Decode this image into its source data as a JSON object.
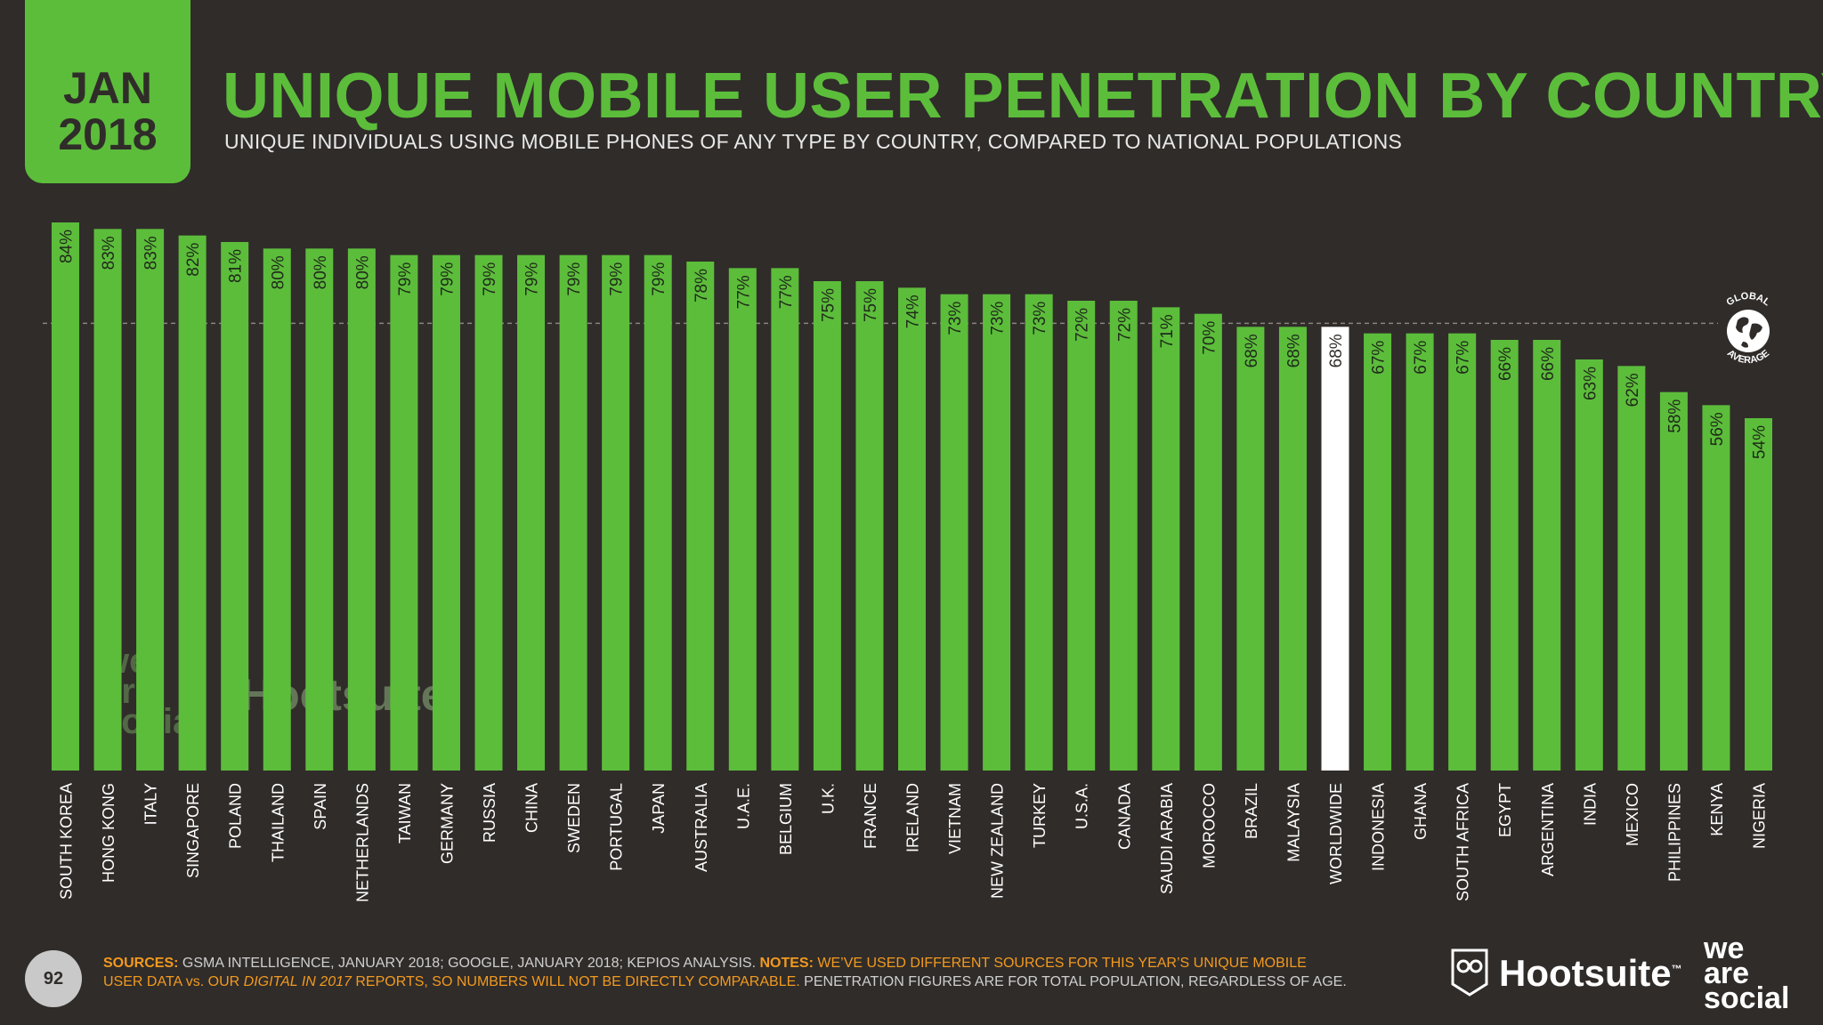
{
  "badge": {
    "month": "JAN",
    "year": "2018"
  },
  "header": {
    "title": "UNIQUE MOBILE USER PENETRATION BY COUNTRY",
    "subtitle": "UNIQUE INDIVIDUALS USING MOBILE PHONES OF ANY TYPE BY COUNTRY, COMPARED TO NATIONAL POPULATIONS"
  },
  "global_average": {
    "line1": "GLOBAL",
    "line2": "AVERAGE"
  },
  "watermark": {
    "we": "we",
    "are": "are",
    "social": "social",
    "hootsuite": "Hootsuite"
  },
  "footer": {
    "page_number": "92",
    "sources_label": "SOURCES:",
    "sources_text": " GSMA INTELLIGENCE, JANUARY 2018; GOOGLE, JANUARY 2018; KEPIOS ANALYSIS. ",
    "notes_label": "NOTES:",
    "notes_text_1": " WE’VE USED DIFFERENT SOURCES FOR THIS YEAR’S UNIQUE MOBILE USER DATA vs. OUR ",
    "notes_italic": "DIGITAL IN 2017",
    "notes_text_2": " REPORTS, SO NUMBERS WILL NOT BE DIRECTLY COMPARABLE.",
    "notes_text_3": " PENETRATION FIGURES ARE FOR TOTAL POPULATION, REGARDLESS OF AGE."
  },
  "brand": {
    "hootsuite": "Hootsuite",
    "tm": "™",
    "we": "we",
    "are": "are",
    "social": "social"
  },
  "colors": {
    "bar": "#5cbd3b",
    "highlight": "#ffffff",
    "background": "#302c2a",
    "accent": "#f39a1e"
  },
  "chart_data": {
    "type": "bar",
    "categories": [
      "SOUTH KOREA",
      "HONG KONG",
      "ITALY",
      "SINGAPORE",
      "POLAND",
      "THAILAND",
      "SPAIN",
      "NETHERLANDS",
      "TAIWAN",
      "GERMANY",
      "RUSSIA",
      "CHINA",
      "SWEDEN",
      "PORTUGAL",
      "JAPAN",
      "AUSTRALIA",
      "U.A.E.",
      "BELGIUM",
      "U.K.",
      "FRANCE",
      "IRELAND",
      "VIETNAM",
      "NEW ZEALAND",
      "TURKEY",
      "U.S.A.",
      "CANADA",
      "SAUDI ARABIA",
      "MOROCCO",
      "BRAZIL",
      "MALAYSIA",
      "WORLDWIDE",
      "INDONESIA",
      "GHANA",
      "SOUTH AFRICA",
      "EGYPT",
      "ARGENTINA",
      "INDIA",
      "MEXICO",
      "PHILIPPINES",
      "KENYA",
      "NIGERIA"
    ],
    "values": [
      84,
      83,
      83,
      82,
      81,
      80,
      80,
      80,
      79,
      79,
      79,
      79,
      79,
      79,
      79,
      78,
      77,
      77,
      75,
      75,
      74,
      73,
      73,
      73,
      72,
      72,
      71,
      70,
      68,
      68,
      68,
      67,
      67,
      67,
      66,
      66,
      63,
      62,
      58,
      56,
      54
    ],
    "labels": [
      "84%",
      "83%",
      "83%",
      "82%",
      "81%",
      "80%",
      "80%",
      "80%",
      "79%",
      "79%",
      "79%",
      "79%",
      "79%",
      "79%",
      "79%",
      "78%",
      "77%",
      "77%",
      "75%",
      "75%",
      "74%",
      "73%",
      "73%",
      "73%",
      "72%",
      "72%",
      "71%",
      "70%",
      "68%",
      "68%",
      "68%",
      "67%",
      "67%",
      "67%",
      "66%",
      "66%",
      "63%",
      "62%",
      "58%",
      "56%",
      "54%"
    ],
    "highlight_category": "WORLDWIDE",
    "reference_line": 68,
    "ylim": [
      0,
      84
    ]
  }
}
